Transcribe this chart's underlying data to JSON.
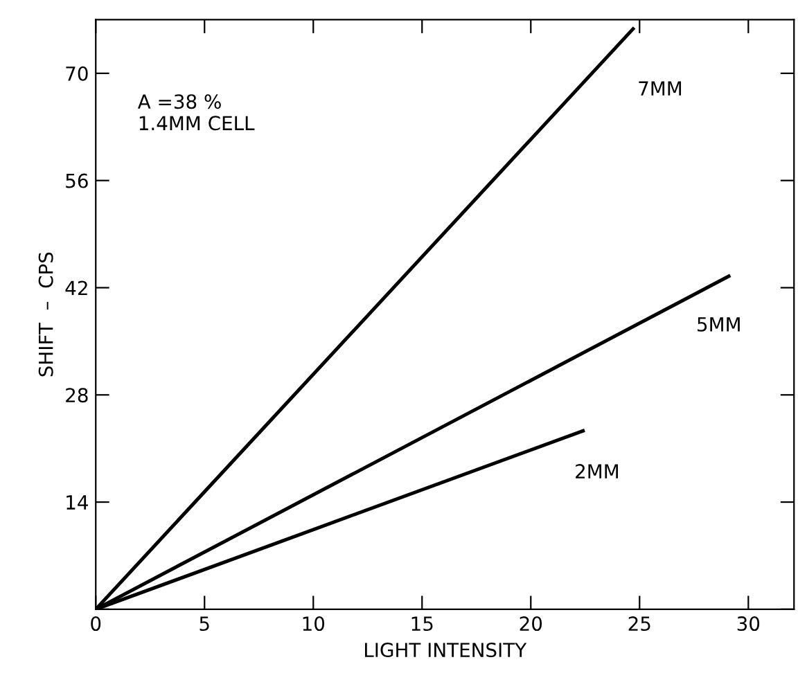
{
  "chart_data": {
    "type": "line",
    "xlabel": "LIGHT INTENSITY",
    "ylabel": "SHIFT  –  CPS",
    "xlim": [
      0,
      32.1
    ],
    "ylim": [
      0,
      77
    ],
    "xticks": [
      0,
      5,
      10,
      15,
      20,
      25,
      30
    ],
    "yticks": [
      {
        "value": 0,
        "label": null
      },
      14,
      28,
      42,
      56,
      70
    ],
    "annotations": [
      "A =38 %",
      "1.4MM CELL"
    ],
    "grid": false,
    "legend": false,
    "marker": "none",
    "line_style": "solid",
    "series": [
      {
        "name": "7MM",
        "color": "#000000",
        "x": [
          0,
          24.7
        ],
        "values": [
          0,
          75.8
        ]
      },
      {
        "name": "5MM",
        "color": "#000000",
        "x": [
          0,
          29.1
        ],
        "values": [
          0,
          43.5
        ]
      },
      {
        "name": "2MM",
        "color": "#000000",
        "x": [
          0,
          22.4
        ],
        "values": [
          0,
          23.3
        ]
      }
    ]
  }
}
